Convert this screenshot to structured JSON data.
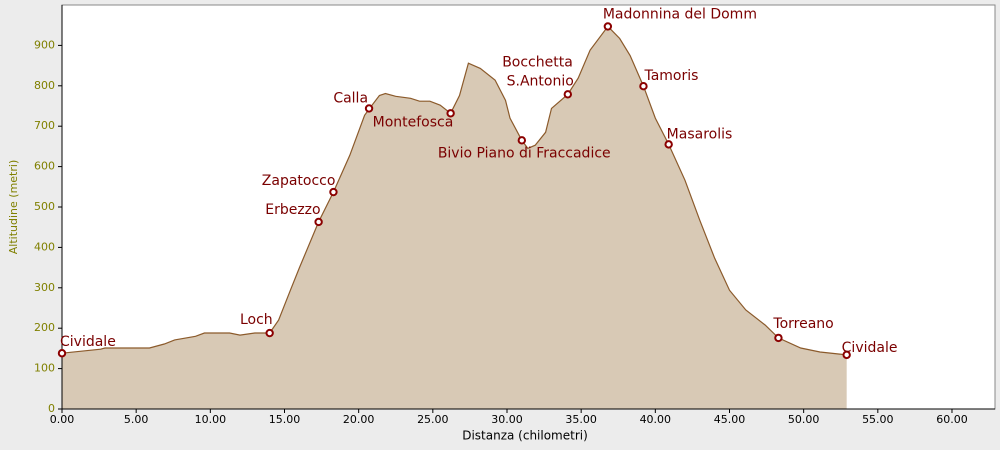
{
  "chart_data": {
    "type": "profile",
    "xlabel": "Distanza (chilometri)",
    "ylabel": "Altitudine (metri)",
    "xlim": [
      0,
      62.9
    ],
    "ylim": [
      0,
      1000
    ],
    "xticks": [
      {
        "value": 0,
        "label": "0.00"
      },
      {
        "value": 5,
        "label": "5.00"
      },
      {
        "value": 10,
        "label": "10.00"
      },
      {
        "value": 15,
        "label": "15.00"
      },
      {
        "value": 20,
        "label": "20.00"
      },
      {
        "value": 25,
        "label": "25.00"
      },
      {
        "value": 30,
        "label": "30.00"
      },
      {
        "value": 35,
        "label": "35.00"
      },
      {
        "value": 40,
        "label": "40.00"
      },
      {
        "value": 45,
        "label": "45.00"
      },
      {
        "value": 50,
        "label": "50.00"
      },
      {
        "value": 55,
        "label": "55.00"
      },
      {
        "value": 60,
        "label": "60.00"
      }
    ],
    "yticks": [
      0,
      100,
      200,
      300,
      400,
      500,
      600,
      700,
      800,
      900
    ],
    "fill_color": "#d8c9b5",
    "line_color": "#8b5a2b",
    "marker_color": "#8b0000",
    "label_color": "#7a0000",
    "profile": {
      "x": [
        0,
        2.6,
        2.9,
        5.9,
        6.9,
        7.6,
        9.0,
        9.6,
        11.3,
        12.0,
        13.0,
        14.0,
        14.6,
        15.4,
        16.0,
        17.3,
        18.3,
        19.4,
        20.4,
        20.8,
        21.4,
        21.8,
        22.5,
        23.5,
        24.1,
        24.8,
        25.5,
        26.2,
        26.8,
        27.4,
        28.2,
        29.2,
        29.9,
        30.2,
        31.0,
        31.4,
        31.9,
        32.6,
        33.0,
        34.1,
        34.8,
        35.6,
        36.8,
        37.6,
        38.3,
        39.2,
        40.0,
        40.9,
        42.0,
        43.0,
        44.0,
        45.0,
        46.1,
        47.4,
        48.3,
        49.8,
        51.1,
        52.9
      ],
      "y": [
        138,
        148,
        151,
        151,
        161,
        171,
        180,
        188,
        188,
        183,
        188,
        188,
        220,
        294,
        349,
        463,
        537,
        628,
        727,
        747,
        776,
        781,
        774,
        769,
        762,
        762,
        752,
        732,
        776,
        856,
        843,
        814,
        764,
        720,
        665,
        645,
        653,
        685,
        744,
        779,
        819,
        888,
        947,
        917,
        875,
        799,
        720,
        655,
        566,
        467,
        373,
        294,
        245,
        208,
        176,
        151,
        141,
        134
      ]
    },
    "waypoints": [
      {
        "label": [
          "Cividale"
        ],
        "x": 0,
        "y": 138
      },
      {
        "label": [
          "Loch"
        ],
        "x": 14.0,
        "y": 188
      },
      {
        "label": [
          "Erbezzo"
        ],
        "x": 17.3,
        "y": 463
      },
      {
        "label": [
          "Zapatocco"
        ],
        "x": 18.3,
        "y": 537
      },
      {
        "label": [
          "Calla"
        ],
        "x": 20.7,
        "y": 744
      },
      {
        "label": [
          "Montefosca"
        ],
        "x": 26.2,
        "y": 732
      },
      {
        "label": [
          "Bivio Piano di Fraccadice"
        ],
        "x": 31.0,
        "y": 665
      },
      {
        "label": [
          "Bocchetta",
          "S.Antonio"
        ],
        "x": 34.1,
        "y": 779
      },
      {
        "label": [
          "Madonnina del Domm"
        ],
        "x": 36.8,
        "y": 947
      },
      {
        "label": [
          "Tamoris"
        ],
        "x": 39.2,
        "y": 799
      },
      {
        "label": [
          "Masarolis"
        ],
        "x": 40.9,
        "y": 655
      },
      {
        "label": [
          "Torreano"
        ],
        "x": 48.3,
        "y": 176
      },
      {
        "label": [
          "Cividale"
        ],
        "x": 52.9,
        "y": 134
      }
    ]
  }
}
